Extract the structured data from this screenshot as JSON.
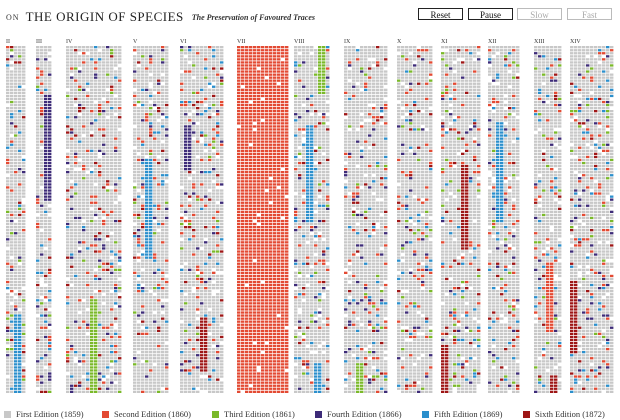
{
  "header": {
    "on": "ON",
    "title": "THE ORIGIN OF SPECIES",
    "subtitle": "The Preservation of Favoured Traces"
  },
  "controls": [
    {
      "label": "Reset",
      "enabled": true
    },
    {
      "label": "Pause",
      "enabled": true
    },
    {
      "label": "Slow",
      "enabled": false
    },
    {
      "label": "Fast",
      "enabled": false
    }
  ],
  "chapters": [
    {
      "label": "II"
    },
    {
      "label": "III"
    },
    {
      "label": "IV"
    },
    {
      "label": "V"
    },
    {
      "label": "VI"
    },
    {
      "label": "VII"
    },
    {
      "label": "VIII"
    },
    {
      "label": "IX"
    },
    {
      "label": "X"
    },
    {
      "label": "XI"
    },
    {
      "label": "XII"
    },
    {
      "label": "XIII"
    },
    {
      "label": "XIV"
    }
  ],
  "editions": [
    {
      "label": "First Edition (1859)",
      "color": "#c8c8c8"
    },
    {
      "label": "Second Edition (1860)",
      "color": "#e34a33"
    },
    {
      "label": "Third Edition (1861)",
      "color": "#7ab929"
    },
    {
      "label": "Fourth Edition (1866)",
      "color": "#3d2b78"
    },
    {
      "label": "Fifth Edition (1869)",
      "color": "#2b8fcc"
    },
    {
      "label": "Sixth Edition (1872)",
      "color": "#9e1616"
    }
  ]
}
